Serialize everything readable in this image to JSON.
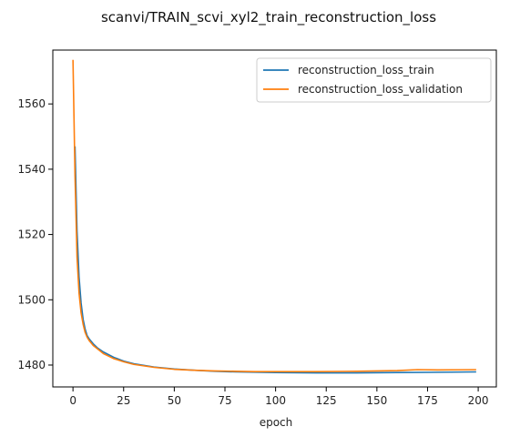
{
  "chart_data": {
    "type": "line",
    "title": "scanvi/TRAIN_scvi_xyl2_train_reconstruction_loss",
    "xlabel": "epoch",
    "ylabel": "",
    "xlim": [
      -9.95,
      208.95
    ],
    "ylim": [
      1473.3,
      1576.5
    ],
    "xticks": [
      0,
      25,
      50,
      75,
      100,
      125,
      150,
      175,
      200
    ],
    "yticks": [
      1480,
      1500,
      1520,
      1540,
      1560
    ],
    "grid": false,
    "legend": "top-right",
    "series": [
      {
        "name": "reconstruction_loss_train",
        "color": "#1f77b4",
        "points": [
          [
            1,
            1547
          ],
          [
            2,
            1521
          ],
          [
            3,
            1507
          ],
          [
            4,
            1499
          ],
          [
            5,
            1494
          ],
          [
            6,
            1491
          ],
          [
            7,
            1489
          ],
          [
            8,
            1488
          ],
          [
            10,
            1486.5
          ],
          [
            12,
            1485.3
          ],
          [
            15,
            1484
          ],
          [
            20,
            1482.4
          ],
          [
            25,
            1481.2
          ],
          [
            30,
            1480.4
          ],
          [
            40,
            1479.4
          ],
          [
            50,
            1478.8
          ],
          [
            60,
            1478.4
          ],
          [
            70,
            1478.1
          ],
          [
            80,
            1477.9
          ],
          [
            90,
            1477.8
          ],
          [
            100,
            1477.7
          ],
          [
            120,
            1477.6
          ],
          [
            140,
            1477.6
          ],
          [
            160,
            1477.7
          ],
          [
            180,
            1477.8
          ],
          [
            199,
            1477.9
          ]
        ]
      },
      {
        "name": "reconstruction_loss_validation",
        "color": "#ff7f0e",
        "points": [
          [
            0,
            1573.5
          ],
          [
            1,
            1538
          ],
          [
            2,
            1513
          ],
          [
            3,
            1502
          ],
          [
            4,
            1496
          ],
          [
            5,
            1492.5
          ],
          [
            6,
            1490
          ],
          [
            7,
            1488.5
          ],
          [
            8,
            1487.5
          ],
          [
            10,
            1486
          ],
          [
            12,
            1485
          ],
          [
            15,
            1483.5
          ],
          [
            20,
            1482
          ],
          [
            25,
            1481
          ],
          [
            30,
            1480.2
          ],
          [
            40,
            1479.3
          ],
          [
            50,
            1478.7
          ],
          [
            60,
            1478.4
          ],
          [
            70,
            1478.2
          ],
          [
            80,
            1478.1
          ],
          [
            90,
            1478.0
          ],
          [
            100,
            1478.0
          ],
          [
            120,
            1478.0
          ],
          [
            140,
            1478.1
          ],
          [
            160,
            1478.3
          ],
          [
            170,
            1478.6
          ],
          [
            180,
            1478.5
          ],
          [
            199,
            1478.6
          ]
        ]
      }
    ]
  }
}
